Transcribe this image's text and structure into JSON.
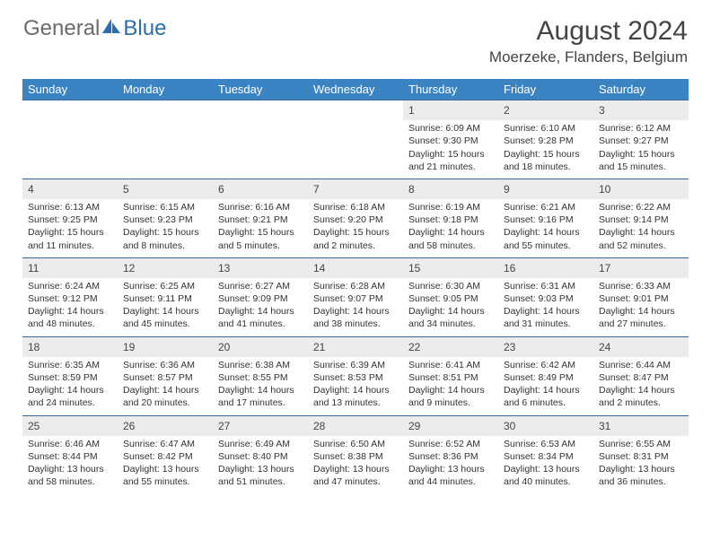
{
  "logo": {
    "text1": "General",
    "text2": "Blue"
  },
  "title": "August 2024",
  "location": "Moerzeke, Flanders, Belgium",
  "colors": {
    "header_bg": "#3b84c4",
    "header_text": "#ffffff",
    "daynum_bg": "#ececec",
    "row_border": "#3b6a9a",
    "logo_gray": "#6b6b6b",
    "logo_blue": "#2a6db3"
  },
  "day_headers": [
    "Sunday",
    "Monday",
    "Tuesday",
    "Wednesday",
    "Thursday",
    "Friday",
    "Saturday"
  ],
  "weeks": [
    [
      null,
      null,
      null,
      null,
      {
        "n": "1",
        "sr": "6:09 AM",
        "ss": "9:30 PM",
        "dl": "15 hours and 21 minutes."
      },
      {
        "n": "2",
        "sr": "6:10 AM",
        "ss": "9:28 PM",
        "dl": "15 hours and 18 minutes."
      },
      {
        "n": "3",
        "sr": "6:12 AM",
        "ss": "9:27 PM",
        "dl": "15 hours and 15 minutes."
      }
    ],
    [
      {
        "n": "4",
        "sr": "6:13 AM",
        "ss": "9:25 PM",
        "dl": "15 hours and 11 minutes."
      },
      {
        "n": "5",
        "sr": "6:15 AM",
        "ss": "9:23 PM",
        "dl": "15 hours and 8 minutes."
      },
      {
        "n": "6",
        "sr": "6:16 AM",
        "ss": "9:21 PM",
        "dl": "15 hours and 5 minutes."
      },
      {
        "n": "7",
        "sr": "6:18 AM",
        "ss": "9:20 PM",
        "dl": "15 hours and 2 minutes."
      },
      {
        "n": "8",
        "sr": "6:19 AM",
        "ss": "9:18 PM",
        "dl": "14 hours and 58 minutes."
      },
      {
        "n": "9",
        "sr": "6:21 AM",
        "ss": "9:16 PM",
        "dl": "14 hours and 55 minutes."
      },
      {
        "n": "10",
        "sr": "6:22 AM",
        "ss": "9:14 PM",
        "dl": "14 hours and 52 minutes."
      }
    ],
    [
      {
        "n": "11",
        "sr": "6:24 AM",
        "ss": "9:12 PM",
        "dl": "14 hours and 48 minutes."
      },
      {
        "n": "12",
        "sr": "6:25 AM",
        "ss": "9:11 PM",
        "dl": "14 hours and 45 minutes."
      },
      {
        "n": "13",
        "sr": "6:27 AM",
        "ss": "9:09 PM",
        "dl": "14 hours and 41 minutes."
      },
      {
        "n": "14",
        "sr": "6:28 AM",
        "ss": "9:07 PM",
        "dl": "14 hours and 38 minutes."
      },
      {
        "n": "15",
        "sr": "6:30 AM",
        "ss": "9:05 PM",
        "dl": "14 hours and 34 minutes."
      },
      {
        "n": "16",
        "sr": "6:31 AM",
        "ss": "9:03 PM",
        "dl": "14 hours and 31 minutes."
      },
      {
        "n": "17",
        "sr": "6:33 AM",
        "ss": "9:01 PM",
        "dl": "14 hours and 27 minutes."
      }
    ],
    [
      {
        "n": "18",
        "sr": "6:35 AM",
        "ss": "8:59 PM",
        "dl": "14 hours and 24 minutes."
      },
      {
        "n": "19",
        "sr": "6:36 AM",
        "ss": "8:57 PM",
        "dl": "14 hours and 20 minutes."
      },
      {
        "n": "20",
        "sr": "6:38 AM",
        "ss": "8:55 PM",
        "dl": "14 hours and 17 minutes."
      },
      {
        "n": "21",
        "sr": "6:39 AM",
        "ss": "8:53 PM",
        "dl": "14 hours and 13 minutes."
      },
      {
        "n": "22",
        "sr": "6:41 AM",
        "ss": "8:51 PM",
        "dl": "14 hours and 9 minutes."
      },
      {
        "n": "23",
        "sr": "6:42 AM",
        "ss": "8:49 PM",
        "dl": "14 hours and 6 minutes."
      },
      {
        "n": "24",
        "sr": "6:44 AM",
        "ss": "8:47 PM",
        "dl": "14 hours and 2 minutes."
      }
    ],
    [
      {
        "n": "25",
        "sr": "6:46 AM",
        "ss": "8:44 PM",
        "dl": "13 hours and 58 minutes."
      },
      {
        "n": "26",
        "sr": "6:47 AM",
        "ss": "8:42 PM",
        "dl": "13 hours and 55 minutes."
      },
      {
        "n": "27",
        "sr": "6:49 AM",
        "ss": "8:40 PM",
        "dl": "13 hours and 51 minutes."
      },
      {
        "n": "28",
        "sr": "6:50 AM",
        "ss": "8:38 PM",
        "dl": "13 hours and 47 minutes."
      },
      {
        "n": "29",
        "sr": "6:52 AM",
        "ss": "8:36 PM",
        "dl": "13 hours and 44 minutes."
      },
      {
        "n": "30",
        "sr": "6:53 AM",
        "ss": "8:34 PM",
        "dl": "13 hours and 40 minutes."
      },
      {
        "n": "31",
        "sr": "6:55 AM",
        "ss": "8:31 PM",
        "dl": "13 hours and 36 minutes."
      }
    ]
  ],
  "labels": {
    "sunrise": "Sunrise:",
    "sunset": "Sunset:",
    "daylight": "Daylight:"
  }
}
